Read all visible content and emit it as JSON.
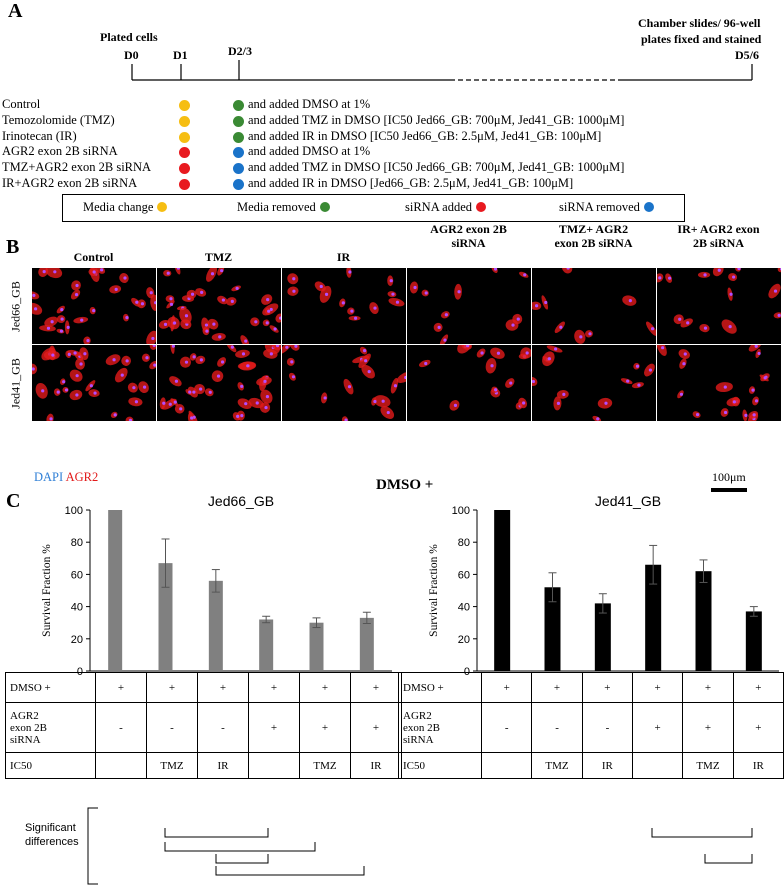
{
  "panel_a": {
    "letter": "A",
    "timeline": {
      "plated_label": "Plated cells",
      "d0": "D0",
      "d1": "D1",
      "d23": "D2/3",
      "d56": "D5/6",
      "chamber_label_1": "Chamber slides/ 96-well",
      "chamber_label_2": "plates fixed and stained"
    },
    "conditions": [
      {
        "name": "Control",
        "d1_color": "#f6be12",
        "d2_color": "#3a8a34",
        "desc": "and added DMSO at 1%"
      },
      {
        "name": "Temozolomide (TMZ)",
        "d1_color": "#f6be12",
        "d2_color": "#3a8a34",
        "desc": "and added TMZ in DMSO [IC50 Jed66_GB: 700μM, Jed41_GB: 1000μM]"
      },
      {
        "name": "Irinotecan (IR)",
        "d1_color": "#f6be12",
        "d2_color": "#3a8a34",
        "desc": "and added IR in DMSO [IC50 Jed66_GB: 2.5μM, Jed41_GB: 100μM]"
      },
      {
        "name": "AGR2 exon 2B siRNA",
        "d1_color": "#e8191f",
        "d2_color": "#1a73c9",
        "desc": "and added DMSO at 1%"
      },
      {
        "name": "TMZ+AGR2 exon 2B siRNA",
        "d1_color": "#e8191f",
        "d2_color": "#1a73c9",
        "desc": "and added TMZ in DMSO [IC50 Jed66_GB: 700μM, Jed41_GB: 1000μM]"
      },
      {
        "name": "IR+AGR2 exon 2B siRNA",
        "d1_color": "#e8191f",
        "d2_color": "#1a73c9",
        "desc": "and added IR in DMSO [Jed66_GB: 2.5μM, Jed41_GB: 100μM]"
      }
    ],
    "legend": [
      {
        "label": "Media change",
        "color": "#f6be12"
      },
      {
        "label": "Media removed",
        "color": "#3a8a34"
      },
      {
        "label": "siRNA added",
        "color": "#e8191f"
      },
      {
        "label": "siRNA removed",
        "color": "#1a73c9"
      }
    ]
  },
  "panel_b": {
    "letter": "B",
    "columns": [
      "Control",
      "TMZ",
      "IR",
      "AGR2 exon 2B siRNA",
      "TMZ+ AGR2 exon 2B siRNA",
      "IR+ AGR2 exon 2B siRNA"
    ],
    "rows": [
      "Jed66_GB",
      "Jed41_GB"
    ],
    "stain_dapi": "DAPI",
    "stain_agr2": "AGR2",
    "stain_dapi_color": "#2f7fd6",
    "stain_agr2_color": "#e21a1a",
    "scale_bar": "100μm"
  },
  "panel_c": {
    "letter": "C",
    "dmso_header": "DMSO +",
    "table_rows": {
      "dmso": "DMSO +",
      "agr2_1": "AGR2",
      "agr2_2": "exon 2B",
      "agr2_3": "siRNA",
      "ic50": "IC50"
    },
    "table_values": {
      "dmso": [
        "+",
        "+",
        "+",
        "+",
        "+",
        "+"
      ],
      "agr2": [
        "-",
        "-",
        "-",
        "+",
        "+",
        "+"
      ],
      "ic50": [
        "",
        "TMZ",
        "IR",
        "",
        "TMZ",
        "IR"
      ]
    },
    "sig_label_1": "Significant",
    "sig_label_2": "differences"
  },
  "chart_data": [
    {
      "type": "bar",
      "title": "Jed66_GB",
      "ylabel": "Survival Fraction %",
      "ylim": [
        0,
        100
      ],
      "yticks": [
        0,
        20,
        40,
        60,
        80,
        100
      ],
      "bar_color": "#808080",
      "categories": [
        "Control",
        "TMZ",
        "IR",
        "AGR2 exon 2B siRNA",
        "TMZ+AGR2 exon 2B siRNA",
        "IR+AGR2 exon 2B siRNA"
      ],
      "values": [
        100,
        67,
        56,
        32,
        30,
        33
      ],
      "errors": [
        0,
        15,
        7,
        2,
        3,
        3.5
      ],
      "grid": false
    },
    {
      "type": "bar",
      "title": "Jed41_GB",
      "ylabel": "Survival Fraction %",
      "ylim": [
        0,
        100
      ],
      "yticks": [
        0,
        20,
        40,
        60,
        80,
        100
      ],
      "bar_color": "#000000",
      "categories": [
        "Control",
        "TMZ",
        "IR",
        "AGR2 exon 2B siRNA",
        "TMZ+AGR2 exon 2B siRNA",
        "IR+AGR2 exon 2B siRNA"
      ],
      "values": [
        100,
        52,
        42,
        66,
        62,
        37
      ],
      "errors": [
        0,
        9,
        6,
        12,
        7,
        3
      ],
      "grid": false
    }
  ]
}
